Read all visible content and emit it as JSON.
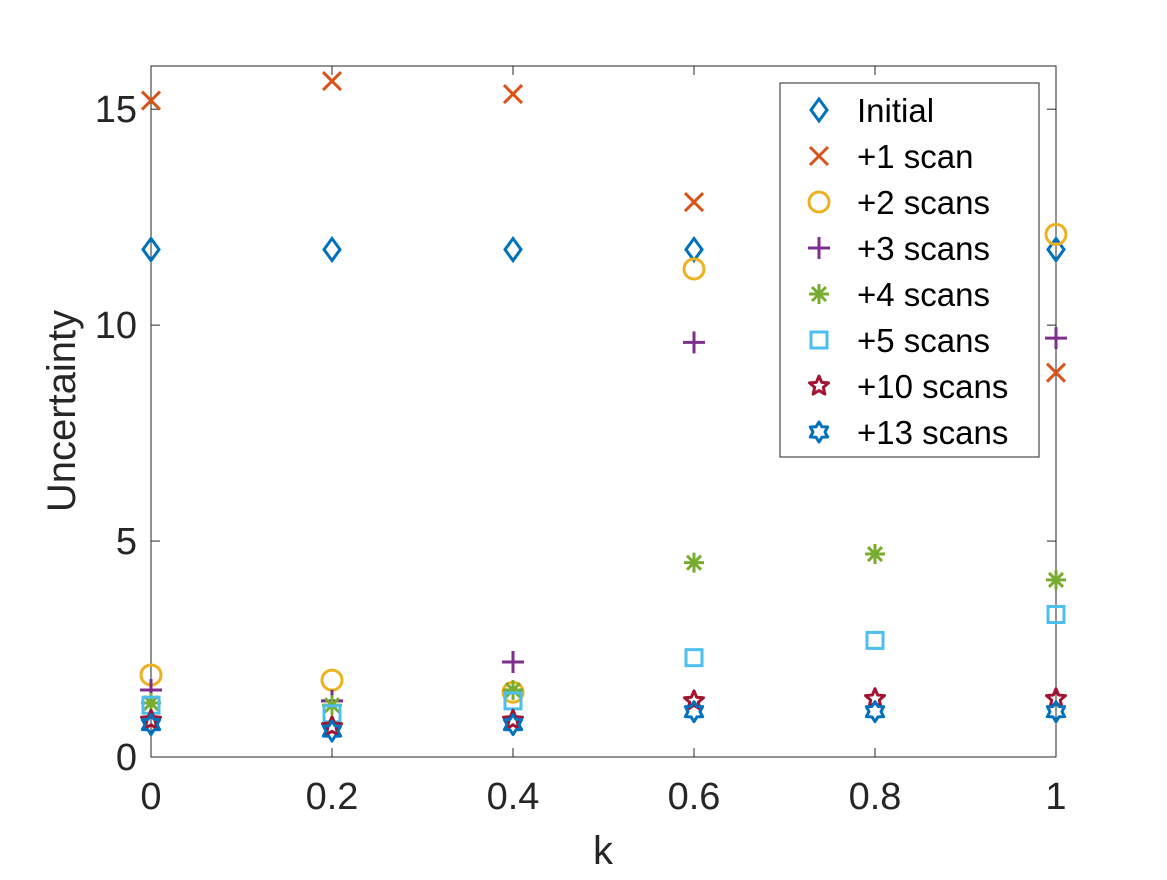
{
  "chart_data": {
    "type": "scatter",
    "title": "",
    "xlabel": "k",
    "ylabel": "Uncertainty",
    "xlim": [
      0,
      1
    ],
    "ylim": [
      0,
      16
    ],
    "xticks": [
      0,
      0.2,
      0.4,
      0.6,
      0.8,
      1
    ],
    "xtick_labels": [
      "0",
      "0.2",
      "0.4",
      "0.6",
      "0.8",
      "1"
    ],
    "yticks": [
      0,
      5,
      10,
      15
    ],
    "ytick_labels": [
      "0",
      "5",
      "10",
      "15"
    ],
    "grid": false,
    "legend_position": "top-right",
    "x": [
      0,
      0.2,
      0.4,
      0.6,
      0.8,
      1
    ],
    "series": [
      {
        "name": "Initial",
        "marker": "diamond",
        "color": "#0072BD",
        "values": [
          11.75,
          11.75,
          11.75,
          11.75,
          null,
          11.75
        ]
      },
      {
        "name": "+1 scan",
        "marker": "x",
        "color": "#D95319",
        "values": [
          15.2,
          15.65,
          15.35,
          12.85,
          null,
          8.9
        ]
      },
      {
        "name": "+2 scans",
        "marker": "circle",
        "color": "#EDB120",
        "values": [
          1.9,
          1.78,
          1.5,
          11.3,
          null,
          12.1
        ]
      },
      {
        "name": "+3 scans",
        "marker": "plus",
        "color": "#7E2F8E",
        "values": [
          1.55,
          1.3,
          2.2,
          9.6,
          null,
          9.7
        ]
      },
      {
        "name": "+4 scans",
        "marker": "asterisk",
        "color": "#77AC30",
        "values": [
          1.25,
          1.2,
          1.55,
          4.5,
          4.7,
          4.1
        ]
      },
      {
        "name": "+5 scans",
        "marker": "square",
        "color": "#4DBEEE",
        "values": [
          1.2,
          1.0,
          1.3,
          2.3,
          2.7,
          3.3
        ]
      },
      {
        "name": "+10 scans",
        "marker": "pentagram",
        "color": "#A2142F",
        "values": [
          0.85,
          0.7,
          0.85,
          1.3,
          1.35,
          1.35
        ]
      },
      {
        "name": "+13 scans",
        "marker": "hexagram",
        "color": "#0072BD",
        "values": [
          0.75,
          0.6,
          0.75,
          1.05,
          1.05,
          1.05
        ]
      }
    ]
  }
}
